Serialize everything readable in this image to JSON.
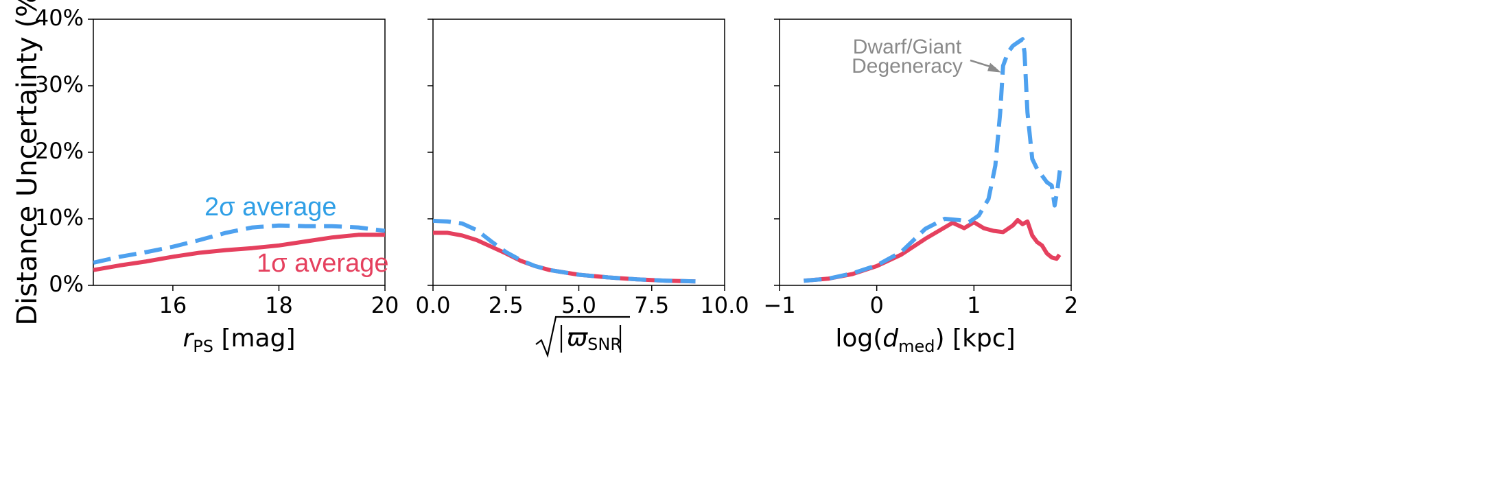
{
  "y_axis_label": "Distance Uncertainty (%)",
  "colors": {
    "sigma1": "#e5405e",
    "sigma2": "#4ea1ef",
    "annotation": "#8a8a8a"
  },
  "chart_data": [
    {
      "type": "line",
      "xlabel_italic": "r",
      "xlabel_sub": "PS",
      "xlabel_rest": " [mag]",
      "xlim": [
        14.5,
        20
      ],
      "ylim": [
        0,
        40
      ],
      "xticks": [
        16,
        18,
        20
      ],
      "xtick_labels": [
        "16",
        "18",
        "20"
      ],
      "yticks": [
        0,
        10,
        20,
        30,
        40
      ],
      "ytick_labels": [
        "0%",
        "10%",
        "20%",
        "30%",
        "40%"
      ],
      "legend": {
        "sigma2": "2σ average",
        "sigma1": "1σ average"
      },
      "series": [
        {
          "name": "2σ average",
          "style": "dashed",
          "x": [
            14.5,
            15,
            15.5,
            16,
            16.5,
            17,
            17.5,
            18,
            18.5,
            19,
            19.5,
            20
          ],
          "y": [
            3.4,
            4.3,
            5.0,
            5.8,
            6.8,
            7.9,
            8.7,
            9.0,
            8.9,
            8.9,
            8.7,
            8.2
          ]
        },
        {
          "name": "1σ average",
          "style": "solid",
          "x": [
            14.5,
            15,
            15.5,
            16,
            16.5,
            17,
            17.5,
            18,
            18.5,
            19,
            19.5,
            20
          ],
          "y": [
            2.3,
            3.0,
            3.6,
            4.3,
            4.9,
            5.3,
            5.6,
            6.0,
            6.6,
            7.2,
            7.6,
            7.6
          ]
        }
      ]
    },
    {
      "type": "line",
      "xlabel_text": "ϖ",
      "xlabel_sub": "SNR",
      "xlim": [
        0,
        10
      ],
      "ylim": [
        0,
        40
      ],
      "xticks": [
        0,
        2.5,
        5,
        7.5,
        10
      ],
      "xtick_labels": [
        "0.0",
        "2.5",
        "5.0",
        "7.5",
        "10.0"
      ],
      "yticks": [
        0,
        10,
        20,
        30,
        40
      ],
      "series": [
        {
          "name": "2σ average",
          "style": "dashed",
          "x": [
            0,
            0.5,
            1.0,
            1.5,
            2.0,
            2.5,
            3.0,
            3.5,
            4.0,
            5.0,
            6.0,
            7.0,
            8.0,
            9.0
          ],
          "y": [
            9.7,
            9.6,
            9.3,
            8.3,
            6.6,
            5.0,
            3.8,
            2.9,
            2.3,
            1.6,
            1.2,
            0.9,
            0.7,
            0.6
          ]
        },
        {
          "name": "1σ average",
          "style": "solid",
          "x": [
            0,
            0.5,
            1.0,
            1.5,
            2.0,
            2.5,
            3.0,
            3.5,
            4.0,
            5.0,
            6.0,
            7.0,
            8.0,
            9.0
          ],
          "y": [
            7.9,
            7.9,
            7.5,
            6.8,
            5.8,
            4.8,
            3.7,
            2.9,
            2.3,
            1.6,
            1.2,
            0.9,
            0.7,
            0.6
          ]
        }
      ]
    },
    {
      "type": "line",
      "xlabel_pre": "log(",
      "xlabel_italic": "d",
      "xlabel_sub": "med",
      "xlabel_rest": ") [kpc]",
      "xlim": [
        -1,
        2
      ],
      "ylim": [
        0,
        40
      ],
      "xticks": [
        -1,
        0,
        1,
        2
      ],
      "xtick_labels": [
        "−1",
        "0",
        "1",
        "2"
      ],
      "yticks": [
        0,
        10,
        20,
        30,
        40
      ],
      "annotation": {
        "line1": "Dwarf/Giant",
        "line2": "Degeneracy",
        "target_x": 1.28,
        "target_y": 32
      },
      "series": [
        {
          "name": "2σ average",
          "style": "dashed",
          "x": [
            -0.75,
            -0.5,
            -0.25,
            0,
            0.25,
            0.5,
            0.7,
            0.85,
            0.95,
            1.05,
            1.15,
            1.22,
            1.27,
            1.3,
            1.35,
            1.4,
            1.45,
            1.5,
            1.52,
            1.55,
            1.6,
            1.65,
            1.7,
            1.75,
            1.8,
            1.83,
            1.86,
            1.89
          ],
          "y": [
            0.7,
            1.0,
            1.8,
            3.0,
            5.0,
            8.5,
            10.0,
            9.8,
            9.5,
            10.5,
            13.0,
            18.0,
            26.0,
            33.0,
            35.0,
            36.0,
            36.5,
            37.0,
            35.0,
            26.0,
            19.0,
            17.5,
            16.5,
            15.5,
            15.0,
            12.0,
            14.5,
            18.0
          ]
        },
        {
          "name": "1σ average",
          "style": "solid",
          "x": [
            -0.75,
            -0.5,
            -0.25,
            0,
            0.25,
            0.5,
            0.78,
            0.9,
            1.0,
            1.1,
            1.2,
            1.3,
            1.4,
            1.45,
            1.5,
            1.55,
            1.6,
            1.65,
            1.7,
            1.75,
            1.8,
            1.85,
            1.88
          ],
          "y": [
            0.7,
            1.0,
            1.7,
            2.9,
            4.6,
            7.0,
            9.4,
            8.6,
            9.5,
            8.6,
            8.2,
            8.0,
            9.0,
            9.8,
            9.2,
            9.6,
            7.5,
            6.5,
            6.0,
            4.8,
            4.2,
            4.0,
            4.6
          ]
        }
      ]
    }
  ]
}
